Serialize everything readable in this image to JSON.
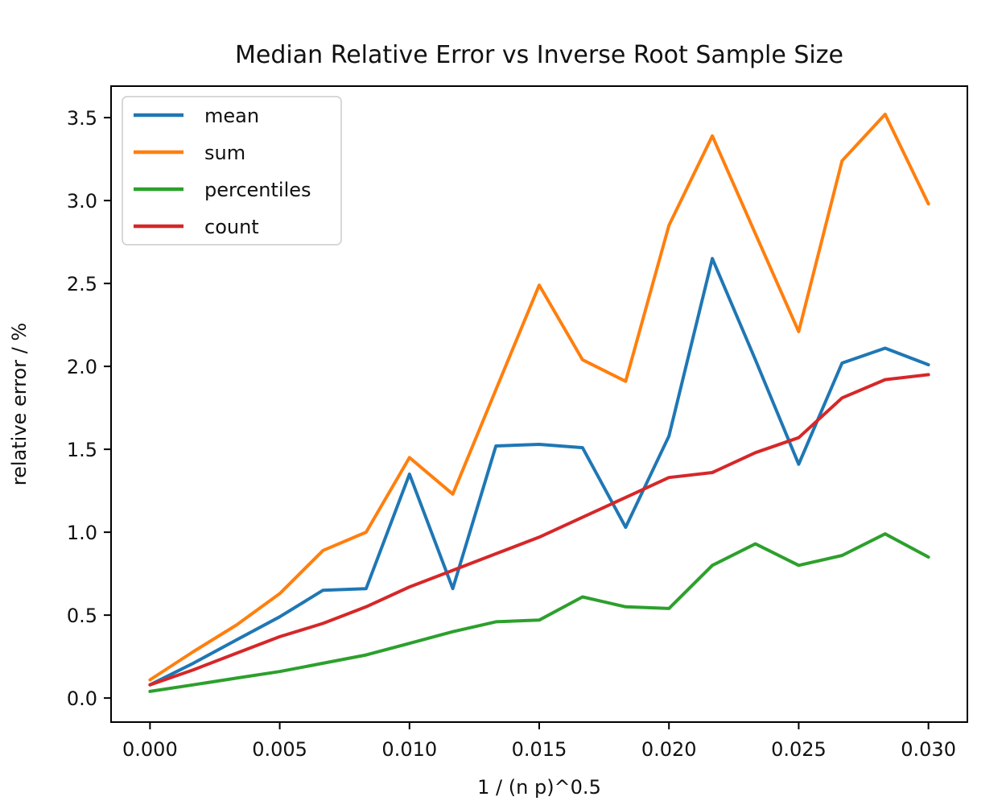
{
  "chart_data": {
    "type": "line",
    "title": "Median Relative Error vs Inverse Root Sample Size",
    "xlabel": "1 / (n p)^0.5",
    "ylabel": "relative error / %",
    "x": [
      0.0,
      0.00167,
      0.00333,
      0.005,
      0.00667,
      0.00833,
      0.01,
      0.01167,
      0.01333,
      0.015,
      0.01667,
      0.01833,
      0.02,
      0.02167,
      0.02333,
      0.025,
      0.02667,
      0.02833,
      0.03
    ],
    "series": [
      {
        "name": "mean",
        "color": "#1f77b4",
        "values": [
          0.08,
          0.21,
          0.35,
          0.49,
          0.65,
          0.66,
          1.35,
          0.66,
          1.52,
          1.53,
          1.51,
          1.03,
          1.58,
          2.65,
          2.04,
          1.41,
          2.02,
          2.11,
          2.01
        ]
      },
      {
        "name": "sum",
        "color": "#ff7f0e",
        "values": [
          0.11,
          0.28,
          0.44,
          0.63,
          0.89,
          1.0,
          1.45,
          1.23,
          1.86,
          2.49,
          2.04,
          1.91,
          2.85,
          3.39,
          2.8,
          2.21,
          3.24,
          3.52,
          2.98
        ]
      },
      {
        "name": "percentiles",
        "color": "#2ca02c",
        "values": [
          0.04,
          0.08,
          0.12,
          0.16,
          0.21,
          0.26,
          0.33,
          0.4,
          0.46,
          0.47,
          0.61,
          0.55,
          0.54,
          0.8,
          0.93,
          0.8,
          0.86,
          0.99,
          0.85
        ]
      },
      {
        "name": "count",
        "color": "#d62728",
        "values": [
          0.08,
          0.17,
          0.27,
          0.37,
          0.45,
          0.55,
          0.67,
          0.77,
          0.87,
          0.97,
          1.09,
          1.21,
          1.33,
          1.36,
          1.48,
          1.57,
          1.81,
          1.92,
          1.95
        ]
      }
    ],
    "xlim": [
      -0.0015,
      0.0315
    ],
    "ylim": [
      -0.145,
      3.69
    ],
    "xticks": [
      0.0,
      0.005,
      0.01,
      0.015,
      0.02,
      0.025,
      0.03
    ],
    "xtick_labels": [
      "0.000",
      "0.005",
      "0.010",
      "0.015",
      "0.020",
      "0.025",
      "0.030"
    ],
    "yticks": [
      0.0,
      0.5,
      1.0,
      1.5,
      2.0,
      2.5,
      3.0,
      3.5
    ],
    "ytick_labels": [
      "0.0",
      "0.5",
      "1.0",
      "1.5",
      "2.0",
      "2.5",
      "3.0",
      "3.5"
    ],
    "grid": false,
    "legend_position": "upper left",
    "frame_color": "#000000",
    "background_color": "#ffffff",
    "legend_border_color": "#cccccc"
  }
}
